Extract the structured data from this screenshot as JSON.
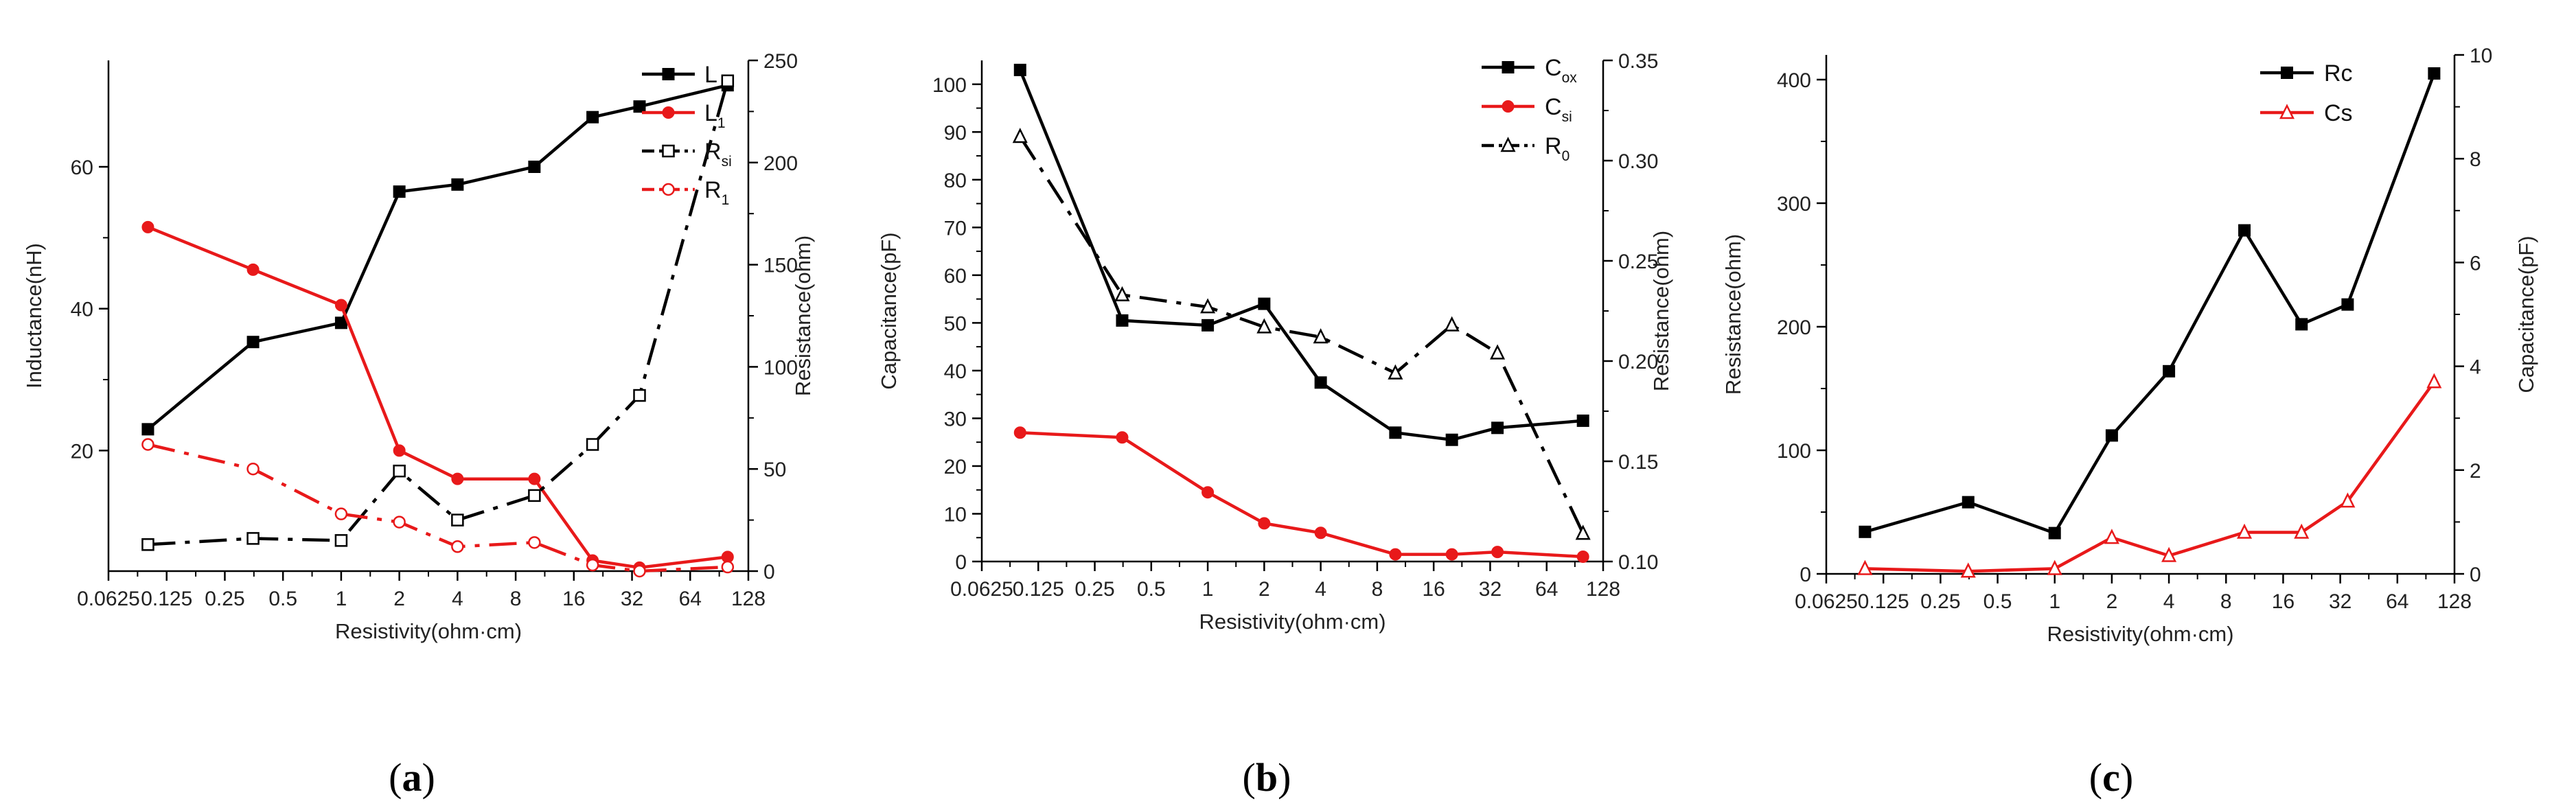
{
  "chart_data": [
    {
      "id": "a",
      "type": "line",
      "x_scale": "log2",
      "xlim": [
        0.0625,
        128
      ],
      "x_ticks": [
        0.0625,
        0.125,
        0.25,
        0.5,
        1,
        2,
        4,
        8,
        16,
        32,
        64,
        128
      ],
      "x_tick_labels": [
        "0.0625",
        "0.125",
        "0.25",
        "0.5",
        "1",
        "2",
        "4",
        "8",
        "16",
        "32",
        "64",
        "128"
      ],
      "xlabel": "Resistivity(ohm·cm)",
      "ylabel": "Inductance(nH)",
      "ylim": [
        3,
        75
      ],
      "y_ticks": [
        20,
        40,
        60
      ],
      "y_tick_labels": [
        "20",
        "40",
        "60"
      ],
      "y2label": "Resistance(ohm)",
      "y2lim": [
        0,
        250
      ],
      "y2_ticks": [
        0,
        50,
        100,
        150,
        200,
        250
      ],
      "y2_tick_labels": [
        "0",
        "50",
        "100",
        "150",
        "200",
        "250"
      ],
      "x": [
        0.1,
        0.35,
        1,
        2,
        4,
        10,
        20,
        35,
        100
      ],
      "series": [
        {
          "name": "L",
          "sub": "",
          "axis": "left",
          "color": "#000000",
          "marker": "filled-square",
          "dash": "solid",
          "values": [
            23,
            35.3,
            38,
            56.5,
            57.5,
            60,
            67,
            68.5,
            71.5
          ]
        },
        {
          "name": "L",
          "sub": "1",
          "axis": "left",
          "color": "#e8191a",
          "marker": "filled-circle",
          "dash": "solid",
          "values": [
            51.5,
            45.5,
            40.5,
            20,
            16,
            16,
            4.5,
            3.5,
            5
          ]
        },
        {
          "name": "R",
          "sub": "si",
          "axis": "right",
          "color": "#000000",
          "marker": "open-square",
          "dash": "dashdot",
          "values": [
            13,
            16,
            15,
            49,
            25,
            37,
            62,
            86,
            240
          ]
        },
        {
          "name": "R",
          "sub": "1",
          "axis": "right",
          "color": "#e8191a",
          "marker": "open-circle",
          "dash": "dashdot",
          "values": [
            62,
            50,
            28,
            24,
            12,
            14,
            3,
            0,
            2
          ]
        }
      ],
      "caption": "(a)",
      "caption_letter": "a",
      "legend_position": "top-right"
    },
    {
      "id": "b",
      "type": "line",
      "x_scale": "log2",
      "xlim": [
        0.0625,
        128
      ],
      "x_ticks": [
        0.0625,
        0.125,
        0.25,
        0.5,
        1,
        2,
        4,
        8,
        16,
        32,
        64,
        128
      ],
      "x_tick_labels": [
        "0.0625",
        "0.125",
        "0.25",
        "0.5",
        "1",
        "2",
        "4",
        "8",
        "16",
        "32",
        "64",
        "128"
      ],
      "xlabel": "Resistivity(ohm·cm)",
      "ylabel": "Capacitance(pF)",
      "ylim": [
        0,
        105
      ],
      "y_ticks": [
        0,
        10,
        20,
        30,
        40,
        50,
        60,
        70,
        80,
        90,
        100
      ],
      "y_tick_labels": [
        "0",
        "10",
        "20",
        "30",
        "40",
        "50",
        "60",
        "70",
        "80",
        "90",
        "100"
      ],
      "y2label": "Resistance(ohm)",
      "y2lim": [
        0.1,
        0.35
      ],
      "y2_ticks": [
        0.1,
        0.15,
        0.2,
        0.25,
        0.3,
        0.35
      ],
      "y2_tick_labels": [
        "0.10",
        "0.15",
        "0.20",
        "0.25",
        "0.30",
        "0.35"
      ],
      "x": [
        0.1,
        0.35,
        1,
        2,
        4,
        10,
        20,
        35,
        100
      ],
      "series": [
        {
          "name": "C",
          "sub": "ox",
          "axis": "left",
          "color": "#000000",
          "marker": "filled-square",
          "dash": "solid",
          "values": [
            103,
            50.5,
            49.5,
            54,
            37.5,
            27,
            25.5,
            28,
            29.5
          ]
        },
        {
          "name": "C",
          "sub": "si",
          "axis": "left",
          "color": "#e8191a",
          "marker": "filled-circle",
          "dash": "solid",
          "values": [
            27,
            26,
            14.5,
            8,
            6,
            1.5,
            1.5,
            2,
            1
          ]
        },
        {
          "name": "R",
          "sub": "0",
          "axis": "right",
          "color": "#000000",
          "marker": "open-triangle",
          "dash": "dashdot",
          "values": [
            0.312,
            0.233,
            0.227,
            0.217,
            0.212,
            0.194,
            0.218,
            0.204,
            0.114
          ]
        }
      ],
      "caption": "(b)",
      "caption_letter": "b",
      "legend_position": "top-right"
    },
    {
      "id": "c",
      "type": "line",
      "x_scale": "log2",
      "xlim": [
        0.0625,
        128
      ],
      "x_ticks": [
        0.0625,
        0.125,
        0.25,
        0.5,
        1,
        2,
        4,
        8,
        16,
        32,
        64,
        128
      ],
      "x_tick_labels": [
        "0.0625",
        "0.125",
        "0.25",
        "0.5",
        "1",
        "2",
        "4",
        "8",
        "16",
        "32",
        "64",
        "128"
      ],
      "xlabel": "Resistivity(ohm·cm)",
      "ylabel": "Resistance(ohm)",
      "ylim": [
        0,
        420
      ],
      "y_ticks": [
        0,
        100,
        200,
        300,
        400
      ],
      "y_tick_labels": [
        "0",
        "100",
        "200",
        "300",
        "400"
      ],
      "y2label": "Capacitance(pF)",
      "y2lim": [
        0,
        10
      ],
      "y2_ticks": [
        0,
        2,
        4,
        6,
        8,
        10
      ],
      "y2_tick_labels": [
        "0",
        "2",
        "4",
        "6",
        "8",
        "10"
      ],
      "x": [
        0.1,
        0.35,
        1,
        2,
        4,
        10,
        20,
        35,
        100
      ],
      "series": [
        {
          "name": "Rc",
          "sub": "",
          "axis": "left",
          "color": "#000000",
          "marker": "filled-square",
          "dash": "solid",
          "values": [
            34,
            58,
            33,
            112,
            164,
            278,
            202,
            218,
            405
          ]
        },
        {
          "name": "Cs",
          "sub": "",
          "axis": "right",
          "color": "#e8191a",
          "marker": "open-triangle",
          "dash": "solid",
          "values": [
            0.1,
            0.05,
            0.1,
            0.7,
            0.35,
            0.8,
            0.8,
            1.4,
            3.7
          ]
        }
      ],
      "caption": "(c)",
      "caption_letter": "c",
      "legend_position": "top-right"
    }
  ]
}
